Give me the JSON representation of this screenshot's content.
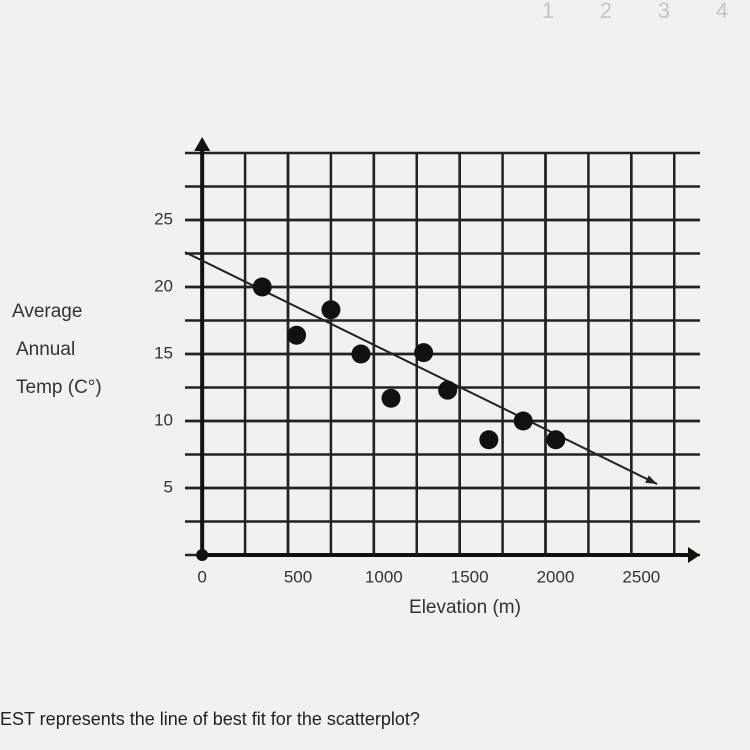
{
  "page_numbers": [
    "1",
    "2",
    "3",
    "4"
  ],
  "question": "EST represents the line of best fit for the scatterplot?",
  "chart_data": {
    "type": "scatter",
    "xlabel": "Elevation (m)",
    "ylabel": [
      "Average",
      "Annual",
      "Temp (C°)"
    ],
    "x": [
      350,
      550,
      750,
      925,
      1100,
      1290,
      1430,
      1670,
      1870,
      2060
    ],
    "y": [
      20,
      16.4,
      18.3,
      15,
      11.7,
      15.1,
      12.3,
      8.6,
      10,
      8.6
    ],
    "color": "#111111",
    "trend_line": {
      "x": [
        -100,
        2650
      ],
      "y": [
        22.6,
        5.3
      ]
    },
    "xlim": [
      -100,
      2900
    ],
    "ylim": [
      0,
      30
    ],
    "xticks": [
      0,
      500,
      1000,
      1500,
      2000,
      2500
    ],
    "yticks": [
      5,
      10,
      15,
      20,
      25
    ],
    "grid": true
  }
}
